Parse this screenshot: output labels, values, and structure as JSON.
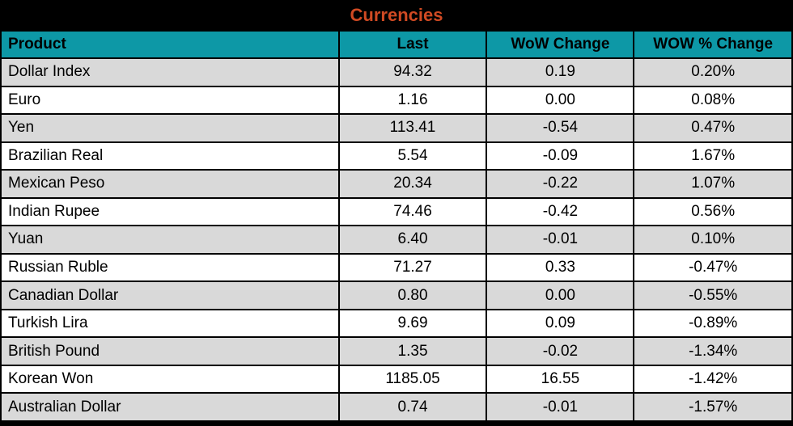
{
  "title": "Currencies",
  "colors": {
    "title_text": "#d04a23",
    "header_bg": "#0d98a6",
    "row_alt_bg": "#d9d9d9",
    "row_bg": "#ffffff",
    "border": "#000000",
    "background": "#000000"
  },
  "table": {
    "columns": [
      {
        "key": "product",
        "label": "Product",
        "align": "left"
      },
      {
        "key": "last",
        "label": "Last",
        "align": "center"
      },
      {
        "key": "wow_change",
        "label": "WoW Change",
        "align": "center"
      },
      {
        "key": "wow_pct_change",
        "label": "WOW % Change",
        "align": "center"
      }
    ],
    "rows": [
      {
        "product": "Dollar Index",
        "last": "94.32",
        "wow_change": "0.19",
        "wow_pct_change": "0.20%"
      },
      {
        "product": "Euro",
        "last": "1.16",
        "wow_change": "0.00",
        "wow_pct_change": "0.08%"
      },
      {
        "product": "Yen",
        "last": "113.41",
        "wow_change": "-0.54",
        "wow_pct_change": "0.47%"
      },
      {
        "product": "Brazilian Real",
        "last": "5.54",
        "wow_change": "-0.09",
        "wow_pct_change": "1.67%"
      },
      {
        "product": "Mexican Peso",
        "last": "20.34",
        "wow_change": "-0.22",
        "wow_pct_change": "1.07%"
      },
      {
        "product": "Indian Rupee",
        "last": "74.46",
        "wow_change": "-0.42",
        "wow_pct_change": "0.56%"
      },
      {
        "product": "Yuan",
        "last": "6.40",
        "wow_change": "-0.01",
        "wow_pct_change": "0.10%"
      },
      {
        "product": "Russian Ruble",
        "last": "71.27",
        "wow_change": "0.33",
        "wow_pct_change": "-0.47%"
      },
      {
        "product": "Canadian Dollar",
        "last": "0.80",
        "wow_change": "0.00",
        "wow_pct_change": "-0.55%"
      },
      {
        "product": "Turkish Lira",
        "last": "9.69",
        "wow_change": "0.09",
        "wow_pct_change": "-0.89%"
      },
      {
        "product": "British Pound",
        "last": "1.35",
        "wow_change": "-0.02",
        "wow_pct_change": "-1.34%"
      },
      {
        "product": "Korean Won",
        "last": "1185.05",
        "wow_change": "16.55",
        "wow_pct_change": "-1.42%"
      },
      {
        "product": "Australian Dollar",
        "last": "0.74",
        "wow_change": "-0.01",
        "wow_pct_change": "-1.57%"
      }
    ]
  }
}
